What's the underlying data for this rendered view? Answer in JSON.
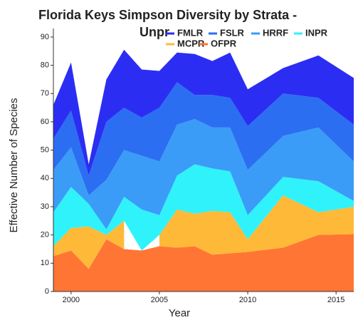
{
  "chart_data": {
    "type": "stacked-area",
    "title": [
      "Florida Keys Simpson Diversity by Strata -",
      "Unpr"
    ],
    "x_label": "Year",
    "y_label": "Effective Number of Species",
    "x": [
      1999,
      2000,
      2001,
      2002,
      2003,
      2004,
      2005,
      2006,
      2007,
      2008,
      2009,
      2010,
      2012,
      2014,
      2016
    ],
    "series": [
      {
        "name": "FMLR",
        "color": "#2b2ef2",
        "values": [
          12,
          17,
          4,
          15,
          20.5,
          17,
          13,
          10.5,
          14.5,
          12,
          16,
          13,
          9,
          15,
          16.5
        ]
      },
      {
        "name": "FSLR",
        "color": "#2c6ef2",
        "values": [
          11,
          13,
          7,
          20.5,
          15,
          13.5,
          19,
          15,
          8.5,
          11.5,
          10.5,
          15.5,
          15,
          10.5,
          13
        ]
      },
      {
        "name": "HRRF",
        "color": "#3a9cf7",
        "values": [
          15,
          14,
          3,
          17.5,
          16.5,
          19,
          19,
          18,
          16,
          14.5,
          15.5,
          16,
          14.5,
          19,
          14
        ]
      },
      {
        "name": "INPR",
        "color": "#30f2fb",
        "values": [
          12,
          14.5,
          8,
          2,
          8.5,
          14.5,
          7,
          12,
          17.5,
          15,
          14.5,
          8.5,
          6.5,
          11,
          2
        ]
      },
      {
        "name": "MCPR",
        "color": "#ffb938",
        "values": [
          3.5,
          8,
          15,
          1.5,
          10,
          null,
          4,
          13.5,
          11.5,
          15.5,
          14.5,
          4.5,
          18.5,
          8,
          9.7
        ]
      },
      {
        "name": "OFPR",
        "color": "#ff7534",
        "values": [
          12.5,
          14.5,
          8,
          18.5,
          15,
          14.5,
          16,
          15.5,
          16,
          13,
          13.5,
          14,
          15.5,
          20,
          20.3
        ]
      }
    ],
    "xlim": [
      1999,
      2016
    ],
    "xticks": [
      2000,
      2005,
      2010,
      2015
    ],
    "ylim": [
      0,
      93
    ],
    "yticks": [
      0,
      10,
      20,
      30,
      40,
      50,
      60,
      70,
      80,
      90
    ],
    "legend": "top-right"
  }
}
